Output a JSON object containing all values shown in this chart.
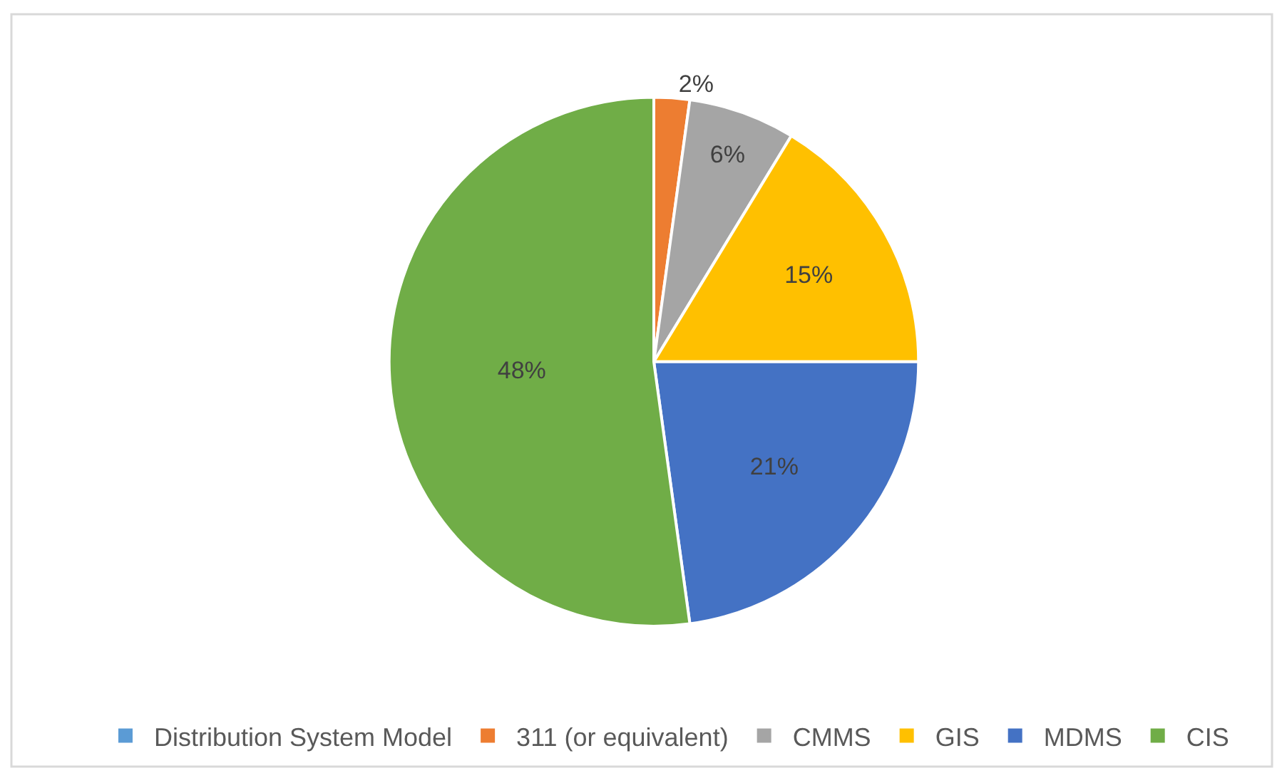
{
  "chart_data": {
    "type": "pie",
    "categories": [
      "Distribution System Model",
      "311 (or equivalent)",
      "CMMS",
      "GIS",
      "MDMS",
      "CIS"
    ],
    "values": [
      0,
      2,
      6,
      15,
      21,
      48
    ],
    "colors": [
      "#5b9bd5",
      "#ed7d31",
      "#a5a5a5",
      "#ffc000",
      "#4472c4",
      "#70ad47"
    ],
    "value_labels": [
      null,
      "2%",
      "6%",
      "15%",
      "21%",
      "48%"
    ],
    "legend": "bottom"
  }
}
